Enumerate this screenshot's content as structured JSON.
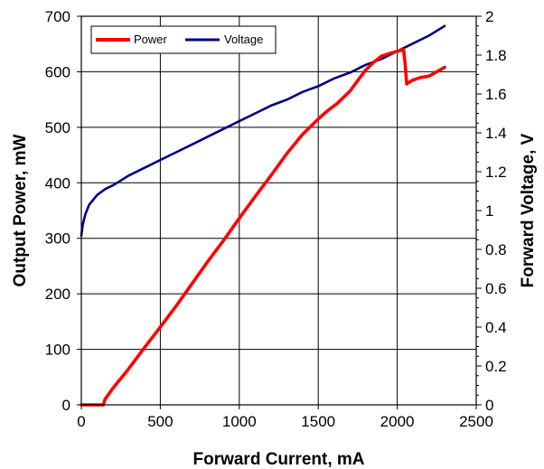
{
  "chart_data": {
    "type": "line",
    "xlabel": "Forward Current, mA",
    "ylabel": "Output Power, mW",
    "y2label": "Forward Voltage, V",
    "xlim": [
      0,
      2500
    ],
    "ylim": [
      0,
      700
    ],
    "y2lim": [
      0,
      2
    ],
    "x_ticks": [
      "0",
      "500",
      "1000",
      "1500",
      "2000",
      "2500"
    ],
    "y_ticks": [
      "0",
      "100",
      "200",
      "300",
      "400",
      "500",
      "600",
      "700"
    ],
    "y2_ticks": [
      "0",
      "0.2",
      "0.4",
      "0.6",
      "0.8",
      "1",
      "1.2",
      "1.4",
      "1.6",
      "1.8",
      "2"
    ],
    "grid": true,
    "legend_position": "top-left",
    "series": [
      {
        "name": "Power",
        "axis": "left",
        "color": "#ff0000",
        "x": [
          0,
          140,
          150,
          200,
          300,
          400,
          500,
          600,
          700,
          800,
          900,
          1000,
          1100,
          1200,
          1300,
          1400,
          1500,
          1560,
          1620,
          1700,
          1760,
          1800,
          1850,
          1900,
          1950,
          2000,
          2040,
          2050,
          2060,
          2070,
          2100,
          2150,
          2200,
          2250,
          2300
        ],
        "values": [
          0,
          0,
          10,
          30,
          65,
          103,
          140,
          178,
          218,
          258,
          296,
          336,
          375,
          413,
          452,
          487,
          515,
          530,
          543,
          565,
          588,
          603,
          617,
          628,
          633,
          637,
          640,
          615,
          578,
          580,
          585,
          590,
          592,
          600,
          608
        ]
      },
      {
        "name": "Voltage",
        "axis": "right",
        "color": "#000080",
        "x": [
          0,
          10,
          25,
          50,
          100,
          150,
          200,
          300,
          400,
          500,
          600,
          700,
          800,
          900,
          1000,
          1100,
          1200,
          1300,
          1400,
          1500,
          1600,
          1700,
          1800,
          1900,
          2000,
          2100,
          2200,
          2300
        ],
        "values": [
          0.87,
          0.93,
          0.98,
          1.03,
          1.08,
          1.11,
          1.13,
          1.18,
          1.22,
          1.26,
          1.3,
          1.34,
          1.38,
          1.42,
          1.46,
          1.5,
          1.54,
          1.57,
          1.61,
          1.64,
          1.68,
          1.71,
          1.75,
          1.78,
          1.82,
          1.86,
          1.9,
          1.95
        ]
      }
    ]
  }
}
